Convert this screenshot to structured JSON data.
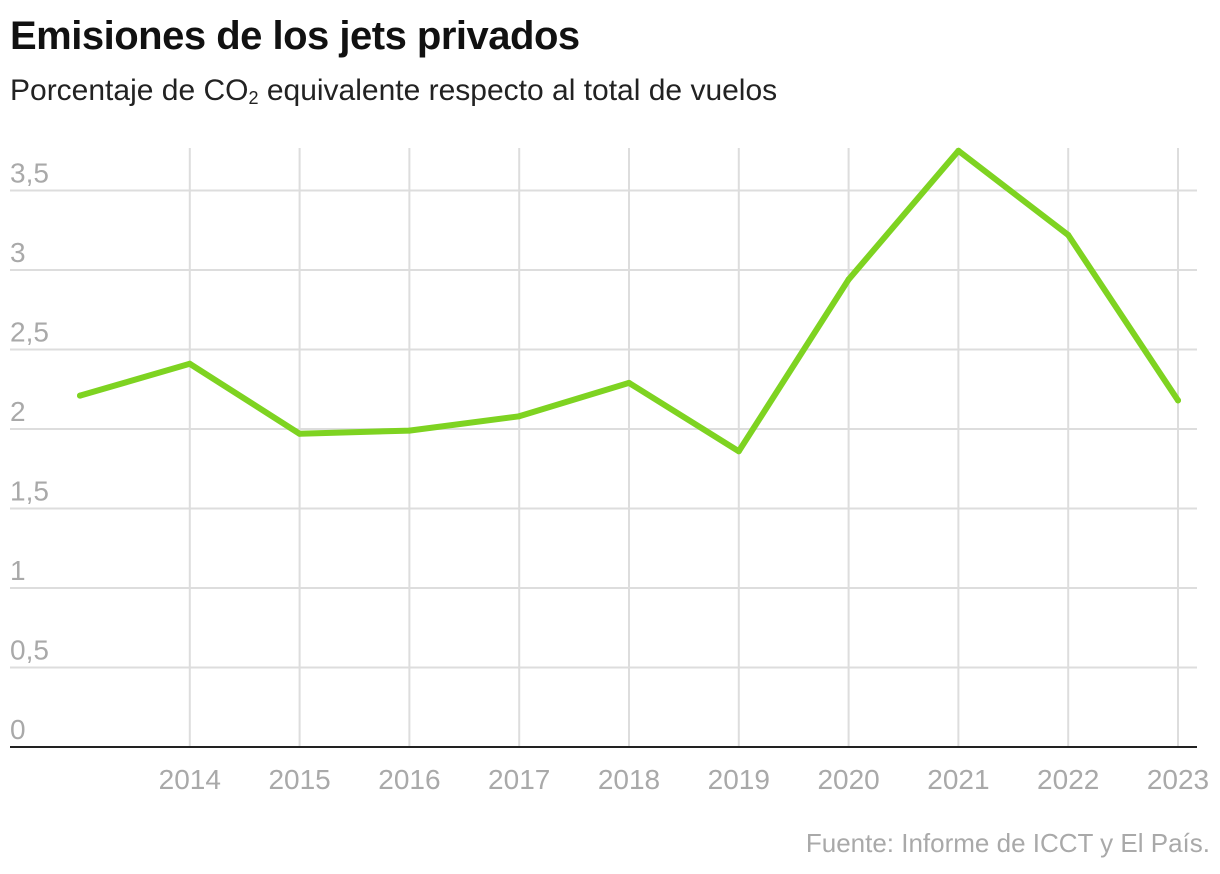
{
  "title": "Emisiones de los jets privados",
  "subtitle": {
    "before": "Porcentaje de CO",
    "sub": "2",
    "after": " equivalente respecto al total de vuelos"
  },
  "source": "Fuente: Informe de ICCT y El País.",
  "colors": {
    "line": "#7ed321",
    "grid": "#dddddd",
    "axis": "#222222",
    "tick": "#a9a9a9"
  },
  "chart_data": {
    "type": "line",
    "title": "Emisiones de los jets privados",
    "subtitle": "Porcentaje de CO₂ equivalente respecto al total de vuelos",
    "xlabel": "",
    "ylabel": "",
    "ylim": [
      0,
      3.75
    ],
    "x": [
      2013,
      2014,
      2015,
      2016,
      2017,
      2018,
      2019,
      2020,
      2021,
      2022,
      2023
    ],
    "x_tick_values": [
      2014,
      2015,
      2016,
      2017,
      2018,
      2019,
      2020,
      2021,
      2022,
      2023
    ],
    "x_tick_labels": [
      "2014",
      "2015",
      "2016",
      "2017",
      "2018",
      "2019",
      "2020",
      "2021",
      "2022",
      "2023"
    ],
    "y_ticks": [
      0,
      0.5,
      1,
      1.5,
      2,
      2.5,
      3,
      3.5
    ],
    "y_tick_labels": [
      "0",
      "0,5",
      "1",
      "1,5",
      "2",
      "2,5",
      "3",
      "3,5"
    ],
    "grid": true,
    "series": [
      {
        "name": "Porcentaje de CO₂ equivalente",
        "values": [
          2.21,
          2.41,
          1.97,
          1.99,
          2.08,
          2.29,
          1.86,
          2.94,
          3.75,
          3.22,
          2.18
        ]
      }
    ]
  }
}
